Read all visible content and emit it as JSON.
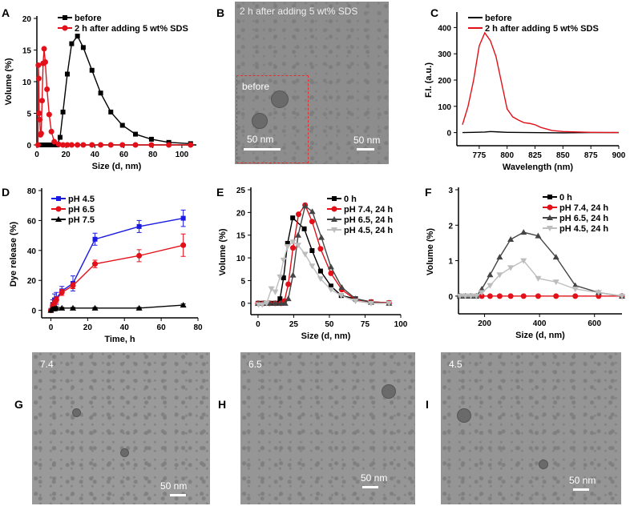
{
  "panels": {
    "A": "A",
    "B": "B",
    "C": "C",
    "D": "D",
    "E": "E",
    "F": "F",
    "G": "G",
    "H": "H",
    "I": "I"
  },
  "images": {
    "B": {
      "caption": "2 h after adding 5 wt% SDS",
      "inset_label": "before",
      "inset_scale": "50 nm",
      "scale": "50 nm"
    },
    "G": {
      "label": "7.4",
      "scale": "50 nm"
    },
    "H": {
      "label": "6.5",
      "scale": "50 nm"
    },
    "I": {
      "label": "4.5",
      "scale": "50 nm"
    }
  },
  "chart_data": [
    {
      "panel": "A",
      "type": "line",
      "xlabel": "Size (d, nm)",
      "ylabel": "Volume (%)",
      "xlim": [
        0,
        110
      ],
      "ylim": [
        0,
        20
      ],
      "xticks": [
        0,
        20,
        40,
        60,
        80,
        100
      ],
      "yticks": [
        0,
        5,
        10,
        15,
        20
      ],
      "legend": "top",
      "grid": false,
      "series": [
        {
          "name": "before",
          "color": "#000000",
          "marker": "square",
          "x": [
            2,
            4,
            6,
            8,
            10,
            12,
            14,
            16,
            18,
            21,
            24,
            28,
            32,
            38,
            44,
            51,
            59,
            68,
            79,
            91,
            106
          ],
          "y": [
            0,
            0,
            0,
            0,
            0,
            0,
            0,
            1.2,
            5.2,
            11.2,
            16,
            17.2,
            15.4,
            11.8,
            8.2,
            5.2,
            3.1,
            1.7,
            0.9,
            0.4,
            0.2
          ]
        },
        {
          "name": "2 h after adding 5 wt% SDS",
          "color": "#e3101a",
          "marker": "circle",
          "x": [
            0.8,
            1.0,
            1.3,
            1.6,
            2.0,
            2.5,
            3.0,
            3.6,
            4.3,
            5.0,
            5.8,
            7,
            8.5,
            10,
            12,
            15,
            18,
            21,
            24,
            28,
            32,
            38,
            44,
            51,
            59,
            68,
            79,
            91,
            106
          ],
          "y": [
            0,
            12.6,
            10.5,
            5,
            4,
            1.6,
            1.8,
            7,
            12.9,
            15.2,
            13.1,
            8.8,
            4.8,
            2.1,
            0.5,
            0.1,
            0,
            0,
            0,
            0,
            0,
            0,
            0,
            0,
            0,
            0,
            0,
            0,
            0
          ]
        }
      ]
    },
    {
      "panel": "C",
      "type": "line",
      "xlabel": "Wavelength (nm)",
      "ylabel": "F.I. (a.u.)",
      "xlim": [
        755,
        900
      ],
      "ylim": [
        -50,
        450
      ],
      "xticks": [
        775,
        800,
        825,
        850,
        875,
        900
      ],
      "yticks": [
        0,
        100,
        200,
        300,
        400
      ],
      "legend": "top",
      "grid": false,
      "series": [
        {
          "name": "before",
          "color": "#000000",
          "marker": "none",
          "x": [
            760,
            770,
            780,
            785,
            790,
            800,
            820,
            850,
            875,
            900
          ],
          "y": [
            0,
            1,
            2,
            4,
            3,
            1,
            0,
            -1,
            0,
            0
          ]
        },
        {
          "name": "2 h after adding 5 wt% SDS",
          "color": "#e3101a",
          "marker": "none",
          "x": [
            760,
            765,
            770,
            775,
            780,
            785,
            790,
            795,
            800,
            805,
            810,
            815,
            820,
            825,
            830,
            840,
            850,
            875,
            900
          ],
          "y": [
            30,
            100,
            200,
            330,
            380,
            350,
            290,
            190,
            90,
            60,
            48,
            38,
            35,
            30,
            20,
            8,
            4,
            1,
            0
          ]
        }
      ]
    },
    {
      "panel": "D",
      "type": "line",
      "xlabel": "Time, h",
      "ylabel": "Dye release (%)",
      "xlim": [
        -5,
        80
      ],
      "ylim": [
        -5,
        80
      ],
      "xticks": [
        0,
        20,
        40,
        60,
        80
      ],
      "yticks": [
        0,
        20,
        40,
        60,
        80
      ],
      "legend": "top-left",
      "grid": false,
      "series": [
        {
          "name": "pH 4.5",
          "color": "#1a1ae0",
          "marker": "square",
          "x": [
            0,
            1,
            2,
            3,
            6,
            12,
            24,
            48,
            72
          ],
          "y": [
            0,
            4,
            7,
            8,
            13,
            18,
            47.5,
            56,
            61.5
          ],
          "err": [
            0,
            3,
            4,
            4,
            3,
            5,
            4,
            4,
            5.5
          ]
        },
        {
          "name": "pH 6.5",
          "color": "#e3101a",
          "marker": "circle",
          "x": [
            0,
            1,
            2,
            3,
            6,
            12,
            24,
            48,
            72
          ],
          "y": [
            0,
            3,
            5,
            7,
            12,
            16.5,
            31,
            36.5,
            43.5
          ],
          "err": [
            0,
            2,
            2,
            2,
            2,
            2,
            2.5,
            4,
            7.5
          ]
        },
        {
          "name": "pH 7.5",
          "color": "#000000",
          "marker": "triangle",
          "x": [
            0,
            1,
            2,
            3,
            6,
            12,
            24,
            48,
            72
          ],
          "y": [
            0,
            1,
            1,
            1.5,
            1.5,
            1.5,
            1.5,
            1.5,
            3.5
          ],
          "err": [
            0,
            1,
            1,
            1,
            0.5,
            0.5,
            0.5,
            0.5,
            0.8
          ]
        }
      ]
    },
    {
      "panel": "E",
      "type": "line",
      "xlabel": "Size (d, nm)",
      "ylabel": "Volume (%)",
      "xlim": [
        -5,
        100
      ],
      "ylim": [
        -2.5,
        25
      ],
      "xticks": [
        0,
        25,
        50,
        75,
        100
      ],
      "yticks": [
        0,
        5,
        10,
        15,
        20,
        25
      ],
      "legend": "top-right",
      "grid": false,
      "series": [
        {
          "name": "0 h",
          "color": "#000000",
          "marker": "square",
          "x": [
            0,
            2,
            4,
            6,
            8,
            10,
            12,
            14,
            15.4,
            17.9,
            20.7,
            24.3,
            32.4,
            37.9,
            43.8,
            51.1,
            58.3,
            68.3,
            79.2,
            91.8
          ],
          "y": [
            0,
            0,
            0,
            0,
            0,
            0,
            0,
            0,
            1,
            5.6,
            13.2,
            18.8,
            16.4,
            11.6,
            7.1,
            3.8,
            1.7,
            1,
            0.3,
            0.1
          ]
        },
        {
          "name": "pH 7.4, 24 h",
          "color": "#e3101a",
          "marker": "circle",
          "x": [
            0,
            4,
            8,
            12,
            16,
            18.5,
            21.2,
            24.5,
            28.4,
            33,
            37.9,
            43.8,
            51.1,
            58.7,
            68.3,
            79.2,
            91.8
          ],
          "y": [
            0,
            0,
            0,
            0,
            0,
            0.5,
            4.2,
            12.2,
            19.6,
            21.6,
            18,
            12,
            6.6,
            3,
            0.8,
            0.3,
            0.1
          ]
        },
        {
          "name": "pH 6.5, 24 h",
          "color": "#444444",
          "marker": "triangle",
          "x": [
            0,
            4,
            8,
            12,
            16,
            19,
            21.2,
            24.5,
            28.1,
            33,
            38,
            44.4,
            51.1,
            58.7,
            68.3,
            79.2,
            91.8
          ],
          "y": [
            0,
            0,
            0,
            0,
            0,
            0,
            1,
            6.2,
            15,
            21.4,
            20.2,
            14.5,
            8,
            3.5,
            1,
            0.2,
            0
          ]
        },
        {
          "name": "pH 4.5, 24 h",
          "color": "#bdbdbd",
          "marker": "down-triangle",
          "x": [
            0.4,
            3,
            6,
            9.4,
            12.1,
            15.4,
            17.9,
            20.7,
            24.5,
            28.1,
            33,
            37.9,
            43.8,
            51.1,
            58.3,
            68.3,
            79.2,
            91.8
          ],
          "y": [
            -0.3,
            -0.3,
            0,
            3.2,
            2.5,
            5.8,
            9.5,
            12.5,
            13.5,
            12.8,
            10.8,
            8.2,
            5.4,
            3,
            1.7,
            0.5,
            0,
            0
          ]
        }
      ]
    },
    {
      "panel": "F",
      "type": "line",
      "xlabel": "Size (d, nm)",
      "ylabel": "Volume (%)",
      "xlim": [
        105,
        700
      ],
      "ylim": [
        -0.5,
        3
      ],
      "xticks": [
        200,
        400,
        600
      ],
      "yticks": [
        0,
        1,
        2,
        3
      ],
      "legend": "top-right",
      "grid": false,
      "series": [
        {
          "name": "0 h",
          "color": "#000000",
          "marker": "square",
          "x": [
            110,
            130,
            150,
            170
          ],
          "y": [
            0,
            0,
            0,
            0
          ]
        },
        {
          "name": "pH 7.4, 24 h",
          "color": "#e3101a",
          "marker": "circle",
          "x": [
            190,
            220,
            255,
            295,
            342,
            395,
            460,
            530,
            615,
            700
          ],
          "y": [
            0,
            0,
            0,
            0,
            0,
            0,
            0,
            0,
            0,
            0
          ]
        },
        {
          "name": "pH 6.5, 24 h",
          "color": "#444444",
          "marker": "triangle",
          "x": [
            110,
            130,
            150,
            170,
            190,
            220,
            255,
            295,
            342,
            395,
            460,
            530,
            615,
            700
          ],
          "y": [
            0,
            0,
            0,
            0,
            0.2,
            0.6,
            1.1,
            1.6,
            1.8,
            1.7,
            1.1,
            0.3,
            0.1,
            0
          ]
        },
        {
          "name": "pH 4.5, 24 h",
          "color": "#bdbdbd",
          "marker": "down-triangle",
          "x": [
            110,
            130,
            150,
            170,
            190,
            220,
            255,
            295,
            342,
            395,
            460,
            530,
            615,
            700
          ],
          "y": [
            0,
            0,
            0,
            0,
            0.1,
            0.3,
            0.6,
            0.8,
            1.0,
            0.5,
            0.4,
            0.2,
            0.1,
            0
          ]
        }
      ]
    }
  ]
}
